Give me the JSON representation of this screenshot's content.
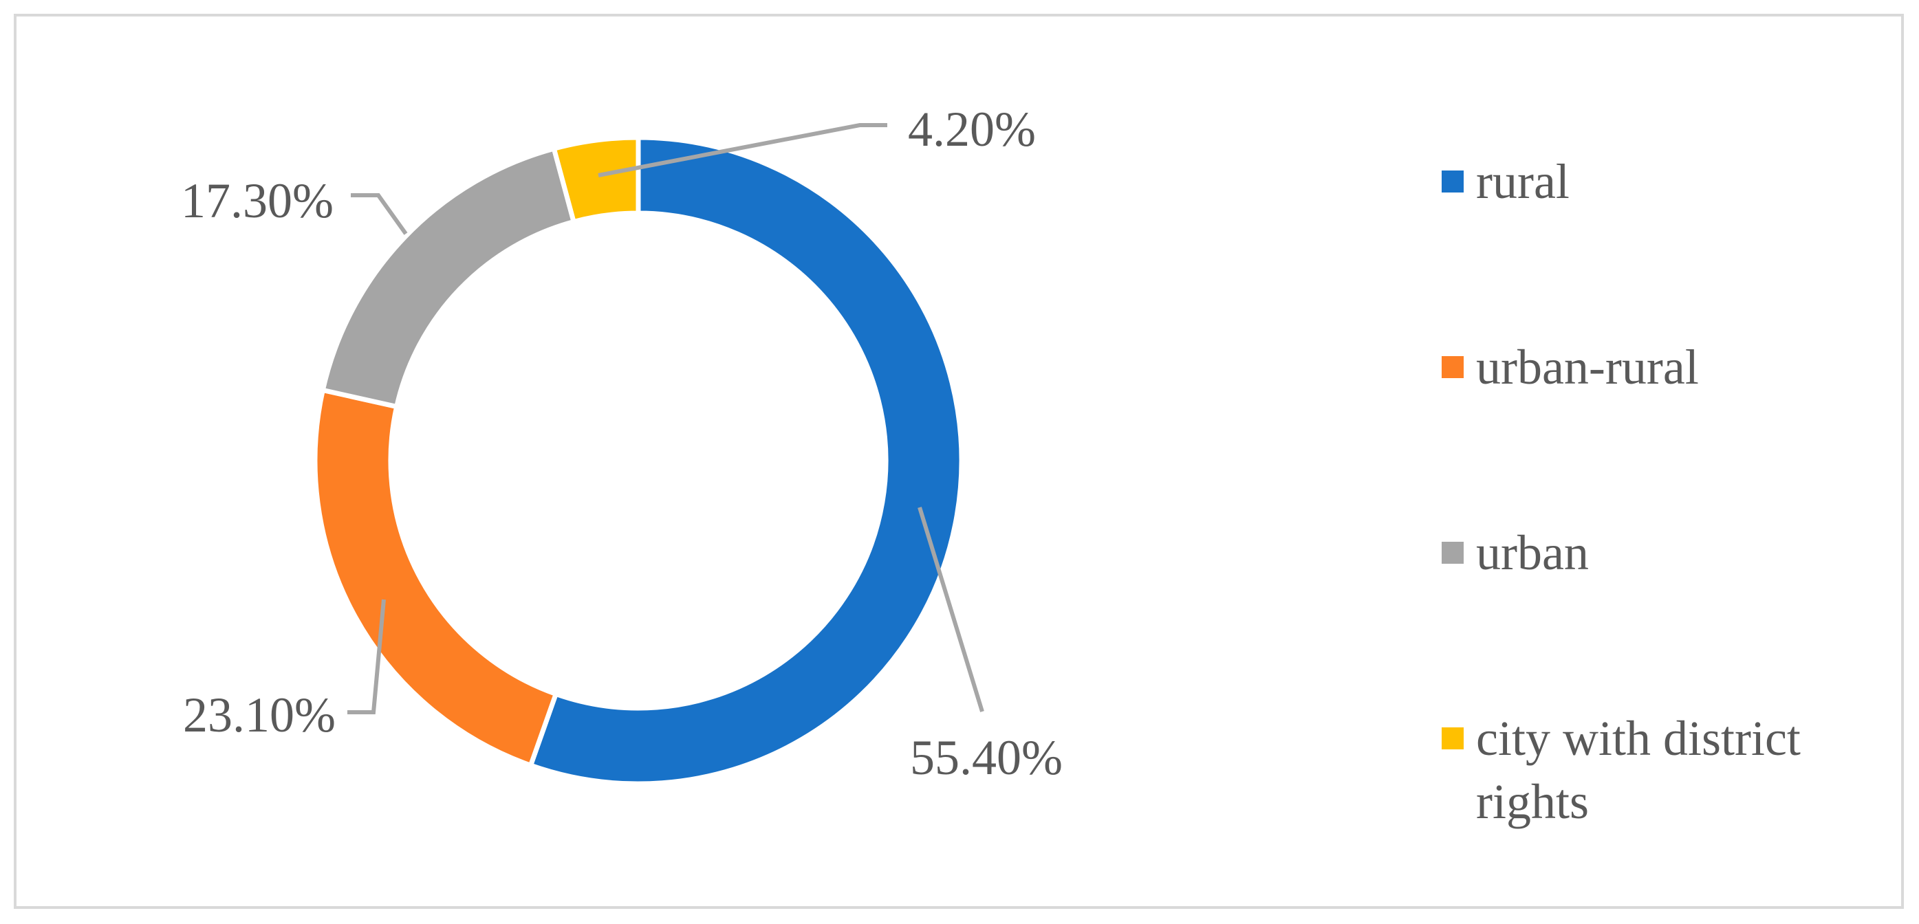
{
  "chart_data": {
    "type": "pie",
    "variant": "donut",
    "categories": [
      "rural",
      "urban-rural",
      "urban",
      "city with district rights"
    ],
    "values": [
      55.4,
      23.1,
      17.3,
      4.2
    ],
    "value_labels": [
      "55.40%",
      "23.10%",
      "17.30%",
      "4.20%"
    ],
    "colors": [
      "#1872c8",
      "#fd7f24",
      "#a5a5a5",
      "#ffc000"
    ],
    "legend_position": "right",
    "start": "top",
    "direction": "clockwise"
  }
}
